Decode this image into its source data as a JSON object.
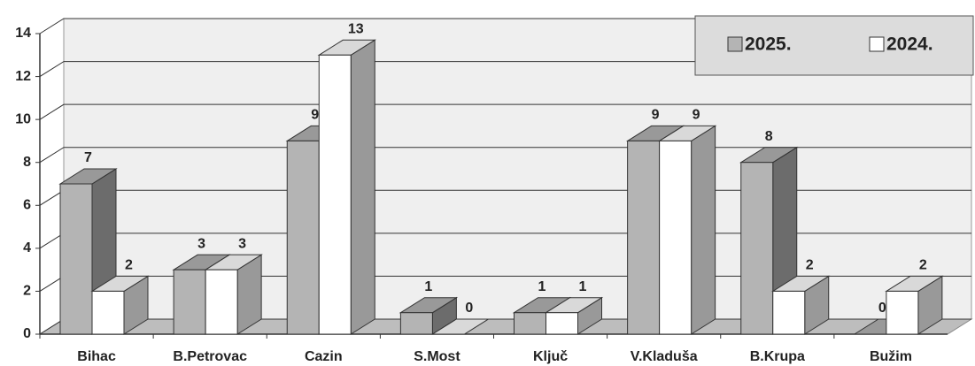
{
  "chart_data": {
    "type": "bar3d",
    "categories": [
      "Bihac",
      "B.Petrovac",
      "Cazin",
      "S.Most",
      "Ključ",
      "V.Kladuša",
      "B.Krupa",
      "Bužim"
    ],
    "series": [
      {
        "name": "2025.",
        "color": "#b4b4b4",
        "values": [
          7,
          3,
          9,
          1,
          1,
          9,
          8,
          0
        ]
      },
      {
        "name": "2024.",
        "color": "#ffffff",
        "values": [
          2,
          3,
          13,
          0,
          1,
          9,
          2,
          2
        ]
      }
    ],
    "ylim": [
      0,
      14
    ],
    "yticks": [
      0,
      2,
      4,
      6,
      8,
      10,
      12,
      14
    ],
    "grid": true,
    "legend": "top-right"
  }
}
